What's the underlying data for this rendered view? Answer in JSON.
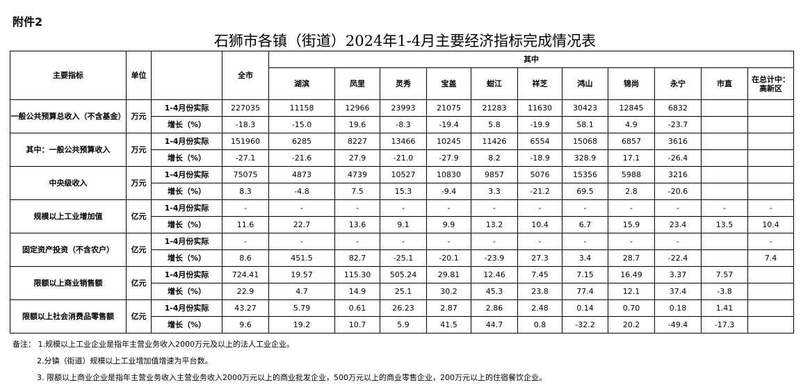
{
  "attachment": "附件2",
  "title": "石狮市各镇（街道）2024年1-4月主要经济指标完成情况表",
  "header": {
    "indicator": "主要指标",
    "unit": "单位",
    "total": "全市",
    "among": "其中",
    "columns": [
      "湖滨",
      "凤里",
      "灵秀",
      "宝盖",
      "蚶江",
      "祥芝",
      "鸿山",
      "锦尚",
      "永宁",
      "市直",
      "在总计中：高新区"
    ]
  },
  "sections": [
    {
      "name": "一般公共预算总收入（不含基金）",
      "unit": "万元",
      "rows": [
        {
          "label": "1-4月份实际",
          "values": [
            "227035",
            "11158",
            "12966",
            "23993",
            "21075",
            "21283",
            "11630",
            "30423",
            "12845",
            "6832",
            "",
            ""
          ]
        },
        {
          "label": "增长（%）",
          "values": [
            "-18.3",
            "-15.0",
            "19.6",
            "-8.3",
            "-19.4",
            "5.8",
            "-19.9",
            "58.1",
            "4.9",
            "-23.7",
            "",
            ""
          ]
        }
      ]
    },
    {
      "name": "其中：一般公共预算收入",
      "unit": "万元",
      "rows": [
        {
          "label": "1-4月份实际",
          "values": [
            "151960",
            "6285",
            "8227",
            "13466",
            "10245",
            "11426",
            "6554",
            "15068",
            "6857",
            "3616",
            "",
            ""
          ]
        },
        {
          "label": "增长（%）",
          "values": [
            "-27.1",
            "-21.6",
            "27.9",
            "-21.0",
            "-27.9",
            "8.2",
            "-18.9",
            "328.9",
            "17.1",
            "-26.4",
            "",
            ""
          ]
        }
      ]
    },
    {
      "name": "中央级收入",
      "unit": "万元",
      "rows": [
        {
          "label": "1-4月份实际",
          "values": [
            "75075",
            "4873",
            "4739",
            "10527",
            "10830",
            "9857",
            "5076",
            "15356",
            "5988",
            "3216",
            "",
            ""
          ]
        },
        {
          "label": "增长（%）",
          "values": [
            "8.3",
            "-4.8",
            "7.5",
            "15.3",
            "-9.4",
            "3.3",
            "-21.2",
            "69.5",
            "2.8",
            "-20.6",
            "",
            ""
          ]
        }
      ]
    },
    {
      "name": "规模以上工业增加值",
      "unit": "亿元",
      "rows": [
        {
          "label": "1-4月份实际",
          "values": [
            "-",
            "-",
            "-",
            "-",
            "-",
            "-",
            "-",
            "-",
            "-",
            "-",
            "-",
            "-"
          ]
        },
        {
          "label": "增长（%）",
          "values": [
            "11.6",
            "22.7",
            "13.6",
            "9.1",
            "9.9",
            "13.2",
            "10.4",
            "6.7",
            "15.9",
            "23.4",
            "13.5",
            "10.4"
          ]
        }
      ]
    },
    {
      "name": "固定资产投资（不含农户）",
      "unit": "亿元",
      "rows": [
        {
          "label": "1-4月份实际",
          "values": [
            "-",
            "-",
            "-",
            "-",
            "-",
            "-",
            "-",
            "-",
            "-",
            "-",
            "",
            "-"
          ]
        },
        {
          "label": "增长（%）",
          "values": [
            "8.6",
            "451.5",
            "82.7",
            "-25.1",
            "-20.1",
            "-23.9",
            "27.3",
            "3.4",
            "28.7",
            "-22.4",
            "",
            "7.4"
          ]
        }
      ]
    },
    {
      "name": "限额以上商业销售额",
      "unit": "亿元",
      "rows": [
        {
          "label": "1-4月份实际",
          "values": [
            "724.41",
            "19.57",
            "115.30",
            "505.24",
            "29.81",
            "12.46",
            "7.45",
            "7.15",
            "16.49",
            "3.37",
            "7.57",
            ""
          ]
        },
        {
          "label": "增长（%）",
          "values": [
            "22.9",
            "4.7",
            "14.9",
            "25.1",
            "30.2",
            "45.3",
            "23.8",
            "77.4",
            "12.1",
            "37.4",
            "-3.8",
            ""
          ]
        }
      ]
    },
    {
      "name": "限额以上社会消费品零售额",
      "unit": "亿元",
      "rows": [
        {
          "label": "1-4月份实际",
          "values": [
            "43.27",
            "5.79",
            "0.61",
            "26.23",
            "2.87",
            "2.86",
            "2.48",
            "0.14",
            "0.70",
            "0.18",
            "1.41",
            ""
          ]
        },
        {
          "label": "增长（%）",
          "values": [
            "9.6",
            "19.2",
            "10.7",
            "5.9",
            "41.5",
            "44.7",
            "0.8",
            "-32.2",
            "20.2",
            "-49.4",
            "-17.3",
            ""
          ]
        }
      ]
    }
  ],
  "notes": [
    "备注：  1.规模以上工业企业是指年主营业务收入2000万元及以上的法人工业企业。",
    "2.分镇（街道）规模以上工业增加值增速为平台数。",
    "3.  限额以上商业企业是指年主营业务收入主营业务收入2000万元以上的商业批发企业，500万元以上的商业零售企业，200万元以上的住宿餐饮企业。"
  ]
}
